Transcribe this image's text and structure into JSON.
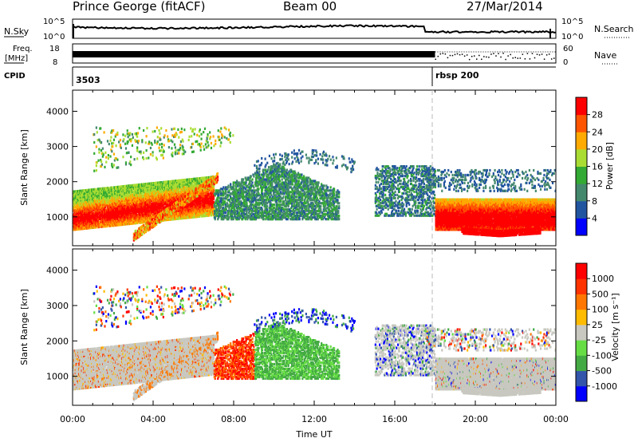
{
  "header": {
    "station": "Prince George (fitACF)",
    "beam": "Beam 00",
    "date": "27/Mar/2014"
  },
  "strips": {
    "nsky_label": "N.Sky",
    "nsearch_label": "N.Search",
    "nsky_ticks": [
      "10^5",
      "10^0"
    ],
    "nsearch_ticks": [
      "10^5",
      "10^0"
    ],
    "freq_label": "Freq.",
    "freq_unit": "[MHz]",
    "freq_ticks": [
      "18",
      "8"
    ],
    "nave_label": "Nave",
    "nave_ticks": [
      "60",
      "0"
    ],
    "cpid_label": "CPID",
    "cpid_values": [
      "3503",
      "rbsp 200"
    ]
  },
  "colors": {
    "axis": "#000000",
    "dashed_marker": "#bbbbbb",
    "ground_scatter": "#c8c8c0",
    "power_scale": [
      "#0000ff",
      "#2255a0",
      "#44886e",
      "#33aa33",
      "#aadd33",
      "#ffaa00",
      "#ff5500",
      "#ff0000"
    ],
    "velocity_scale": [
      "#0000ff",
      "#3355aa",
      "#44aa44",
      "#66dd44",
      "#c8c8c0",
      "#ffbb00",
      "#ff7700",
      "#ff3300",
      "#ff0000"
    ]
  },
  "chart_data": [
    {
      "type": "heatmap",
      "name": "power",
      "xlabel": "",
      "ylabel": "Slant Range [km]",
      "xlim": [
        0,
        24
      ],
      "ylim": [
        180,
        4600
      ],
      "yticks": [
        1000,
        2000,
        3000,
        4000
      ],
      "colorbar_label": "Power [dB]",
      "colorbar_ticks": [
        "4",
        "8",
        "12",
        "16",
        "20",
        "24",
        "28"
      ],
      "colorbar_range": [
        0,
        32
      ]
    },
    {
      "type": "heatmap",
      "name": "velocity",
      "xlabel": "Time UT",
      "ylabel": "Slant Range [km]",
      "xlim": [
        0,
        24
      ],
      "ylim": [
        180,
        4600
      ],
      "xticks": [
        "00:00",
        "04:00",
        "08:00",
        "12:00",
        "16:00",
        "20:00",
        "00:00"
      ],
      "yticks": [
        1000,
        2000,
        3000,
        4000
      ],
      "colorbar_label": "Velocity [m s⁻¹]",
      "colorbar_ticks": [
        "1000",
        "500",
        "100",
        "25",
        "-25",
        "-100",
        "-500",
        "-1000"
      ]
    }
  ]
}
